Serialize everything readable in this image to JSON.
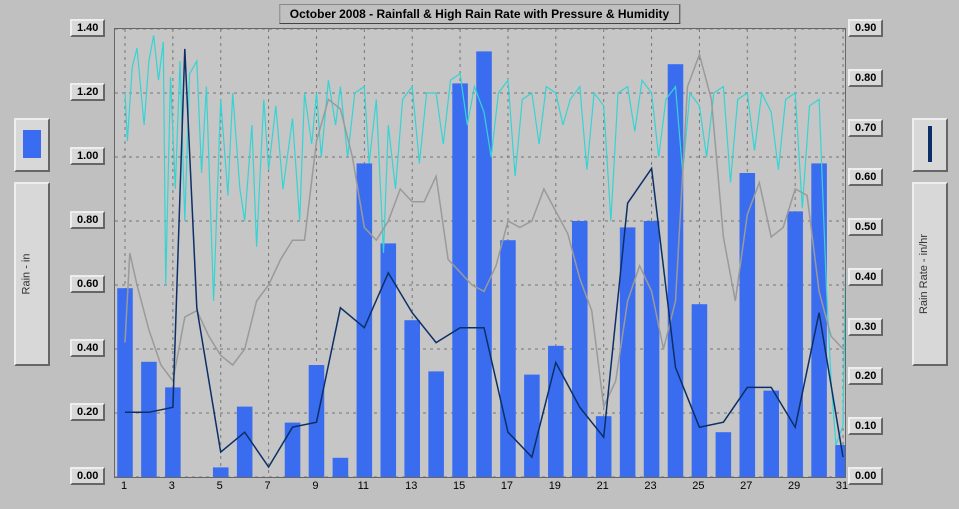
{
  "title": "October 2008 - Rainfall & High Rain Rate with Pressure & Humidity",
  "chart": {
    "type": "combo-bar-line",
    "background_color": "#c6c6c6",
    "page_background": "#c0c0c0",
    "grid_color": "#777777",
    "grid_dash": "3,4",
    "x": {
      "label": "day-of-month",
      "ticks": [
        1,
        3,
        5,
        7,
        9,
        11,
        13,
        15,
        17,
        19,
        21,
        23,
        25,
        27,
        29,
        31
      ],
      "min": 1,
      "max": 31
    },
    "y_left": {
      "label": "Rain - in",
      "min": 0.0,
      "max": 1.4,
      "ticks": [
        0.0,
        0.2,
        0.4,
        0.6,
        0.8,
        1.0,
        1.2,
        1.4
      ],
      "tick_box_bg": "#d8d8d8"
    },
    "y_right": {
      "label": "Rain Rate - in/hr",
      "min": 0.0,
      "max": 0.9,
      "ticks": [
        0.0,
        0.1,
        0.2,
        0.3,
        0.4,
        0.5,
        0.6,
        0.7,
        0.8,
        0.9
      ],
      "tick_box_bg": "#d8d8d8"
    },
    "series": {
      "rainfall_bars": {
        "axis": "left",
        "color": "#3a6cf0",
        "bar_width": 0.65,
        "values_by_day": {
          "1": 0.59,
          "2": 0.36,
          "3": 0.28,
          "4": 0.0,
          "5": 0.03,
          "6": 0.22,
          "7": 0.0,
          "8": 0.17,
          "9": 0.35,
          "10": 0.06,
          "11": 0.98,
          "12": 0.73,
          "13": 0.49,
          "14": 0.33,
          "15": 1.23,
          "16": 1.33,
          "17": 0.74,
          "18": 0.32,
          "19": 0.41,
          "20": 0.8,
          "21": 0.19,
          "22": 0.78,
          "23": 0.8,
          "24": 1.29,
          "25": 0.54,
          "26": 0.14,
          "27": 0.95,
          "28": 0.27,
          "29": 0.83,
          "30": 0.98,
          "31": 0.1
        }
      },
      "rain_rate_line": {
        "axis": "right",
        "color": "#0b2f66",
        "line_width": 1.5,
        "values_by_day": {
          "1": 0.13,
          "2": 0.13,
          "3": 0.14,
          "3.5": 0.86,
          "4": 0.34,
          "5": 0.05,
          "6": 0.09,
          "7": 0.02,
          "8": 0.1,
          "9": 0.11,
          "10": 0.34,
          "11": 0.3,
          "12": 0.41,
          "13": 0.33,
          "14": 0.27,
          "15": 0.3,
          "16": 0.3,
          "17": 0.09,
          "18": 0.04,
          "19": 0.23,
          "20": 0.14,
          "21": 0.08,
          "22": 0.55,
          "23": 0.62,
          "24": 0.22,
          "25": 0.1,
          "26": 0.11,
          "27": 0.18,
          "28": 0.18,
          "29": 0.1,
          "30": 0.33,
          "31": 0.04
        }
      },
      "pressure_line": {
        "axis": "left",
        "color": "#9a9a9a",
        "line_width": 1.5,
        "values": [
          [
            1,
            0.42
          ],
          [
            1.2,
            0.7
          ],
          [
            1.5,
            0.6
          ],
          [
            2,
            0.46
          ],
          [
            2.5,
            0.35
          ],
          [
            3,
            0.3
          ],
          [
            3.5,
            0.5
          ],
          [
            4,
            0.52
          ],
          [
            4.5,
            0.44
          ],
          [
            5,
            0.38
          ],
          [
            5.5,
            0.35
          ],
          [
            6,
            0.4
          ],
          [
            6.5,
            0.55
          ],
          [
            7,
            0.6
          ],
          [
            7.5,
            0.68
          ],
          [
            8,
            0.74
          ],
          [
            8.5,
            0.74
          ],
          [
            9,
            1.05
          ],
          [
            9.5,
            1.18
          ],
          [
            10,
            1.15
          ],
          [
            10.5,
            1.0
          ],
          [
            11,
            0.78
          ],
          [
            11.5,
            0.74
          ],
          [
            12,
            0.8
          ],
          [
            12.5,
            0.9
          ],
          [
            13,
            0.86
          ],
          [
            13.5,
            0.86
          ],
          [
            14,
            0.94
          ],
          [
            14.5,
            0.68
          ],
          [
            15,
            0.64
          ],
          [
            15.5,
            0.6
          ],
          [
            16,
            0.58
          ],
          [
            16.5,
            0.66
          ],
          [
            17,
            0.8
          ],
          [
            17.5,
            0.78
          ],
          [
            18,
            0.8
          ],
          [
            18.5,
            0.9
          ],
          [
            19,
            0.83
          ],
          [
            19.5,
            0.76
          ],
          [
            20,
            0.62
          ],
          [
            20.5,
            0.52
          ],
          [
            21,
            0.22
          ],
          [
            21.5,
            0.3
          ],
          [
            22,
            0.55
          ],
          [
            22.5,
            0.66
          ],
          [
            23,
            0.58
          ],
          [
            23.5,
            0.4
          ],
          [
            24,
            0.55
          ],
          [
            24.5,
            1.22
          ],
          [
            25,
            1.32
          ],
          [
            25.5,
            1.18
          ],
          [
            26,
            0.75
          ],
          [
            26.5,
            0.55
          ],
          [
            27,
            0.82
          ],
          [
            27.5,
            0.92
          ],
          [
            28,
            0.75
          ],
          [
            28.5,
            0.78
          ],
          [
            29,
            0.9
          ],
          [
            29.5,
            0.88
          ],
          [
            30,
            0.58
          ],
          [
            30.5,
            0.44
          ],
          [
            31,
            0.4
          ]
        ]
      },
      "humidity_line": {
        "axis": "left",
        "color": "#35d4d4",
        "line_width": 1.2,
        "values": [
          [
            1,
            1.2
          ],
          [
            1.1,
            1.05
          ],
          [
            1.3,
            1.28
          ],
          [
            1.5,
            1.34
          ],
          [
            1.8,
            1.1
          ],
          [
            2,
            1.3
          ],
          [
            2.2,
            1.38
          ],
          [
            2.4,
            1.24
          ],
          [
            2.6,
            1.36
          ],
          [
            2.7,
            0.6
          ],
          [
            2.9,
            1.25
          ],
          [
            3.1,
            0.9
          ],
          [
            3.3,
            1.3
          ],
          [
            3.5,
            0.8
          ],
          [
            3.7,
            1.26
          ],
          [
            4,
            1.3
          ],
          [
            4.2,
            0.95
          ],
          [
            4.4,
            1.22
          ],
          [
            4.7,
            0.55
          ],
          [
            5,
            1.18
          ],
          [
            5.3,
            0.88
          ],
          [
            5.5,
            1.2
          ],
          [
            5.8,
            0.9
          ],
          [
            6,
            0.8
          ],
          [
            6.3,
            1.1
          ],
          [
            6.5,
            0.72
          ],
          [
            6.8,
            1.18
          ],
          [
            7,
            0.96
          ],
          [
            7.3,
            1.16
          ],
          [
            7.6,
            0.9
          ],
          [
            8,
            1.12
          ],
          [
            8.3,
            0.8
          ],
          [
            8.5,
            1.2
          ],
          [
            8.8,
            1.04
          ],
          [
            9,
            1.2
          ],
          [
            9.2,
            1.0
          ],
          [
            9.5,
            1.24
          ],
          [
            9.8,
            1.1
          ],
          [
            10,
            1.22
          ],
          [
            10.3,
            1.0
          ],
          [
            10.6,
            1.2
          ],
          [
            11,
            1.22
          ],
          [
            11.2,
            0.98
          ],
          [
            11.5,
            1.18
          ],
          [
            11.8,
            0.7
          ],
          [
            12,
            1.1
          ],
          [
            12.3,
            0.9
          ],
          [
            12.6,
            1.18
          ],
          [
            13,
            1.22
          ],
          [
            13.3,
            0.98
          ],
          [
            13.6,
            1.2
          ],
          [
            14,
            1.2
          ],
          [
            14.3,
            1.04
          ],
          [
            14.6,
            1.24
          ],
          [
            15,
            1.26
          ],
          [
            15.3,
            1.1
          ],
          [
            15.6,
            1.22
          ],
          [
            16,
            1.14
          ],
          [
            16.3,
            1.0
          ],
          [
            16.6,
            1.2
          ],
          [
            17,
            1.24
          ],
          [
            17.3,
            0.94
          ],
          [
            17.6,
            1.18
          ],
          [
            18,
            1.2
          ],
          [
            18.3,
            1.04
          ],
          [
            18.6,
            1.22
          ],
          [
            19,
            1.2
          ],
          [
            19.3,
            1.1
          ],
          [
            19.6,
            1.18
          ],
          [
            20,
            1.22
          ],
          [
            20.3,
            0.96
          ],
          [
            20.6,
            1.2
          ],
          [
            21,
            1.16
          ],
          [
            21.3,
            0.8
          ],
          [
            21.6,
            1.2
          ],
          [
            22,
            1.22
          ],
          [
            22.3,
            1.08
          ],
          [
            22.6,
            1.24
          ],
          [
            23,
            1.2
          ],
          [
            23.3,
            1.0
          ],
          [
            23.6,
            1.18
          ],
          [
            24,
            1.22
          ],
          [
            24.3,
            0.95
          ],
          [
            24.6,
            1.2
          ],
          [
            25,
            1.16
          ],
          [
            25.3,
            1.0
          ],
          [
            25.6,
            1.2
          ],
          [
            26,
            1.22
          ],
          [
            26.3,
            0.92
          ],
          [
            26.6,
            1.18
          ],
          [
            27,
            1.2
          ],
          [
            27.3,
            1.02
          ],
          [
            27.6,
            1.2
          ],
          [
            28,
            1.14
          ],
          [
            28.3,
            0.96
          ],
          [
            28.6,
            1.18
          ],
          [
            29,
            1.2
          ],
          [
            29.3,
            0.84
          ],
          [
            29.6,
            1.16
          ],
          [
            30,
            1.18
          ],
          [
            30.3,
            0.6
          ],
          [
            30.5,
            0.3
          ],
          [
            30.7,
            0.1
          ],
          [
            31,
            0.16
          ],
          [
            31.2,
            1.1
          ],
          [
            31.4,
            1.18
          ]
        ]
      }
    },
    "legend_swatches": {
      "left_bar_color": "#3a6cf0",
      "right_line_color": "#0b2f66"
    }
  }
}
